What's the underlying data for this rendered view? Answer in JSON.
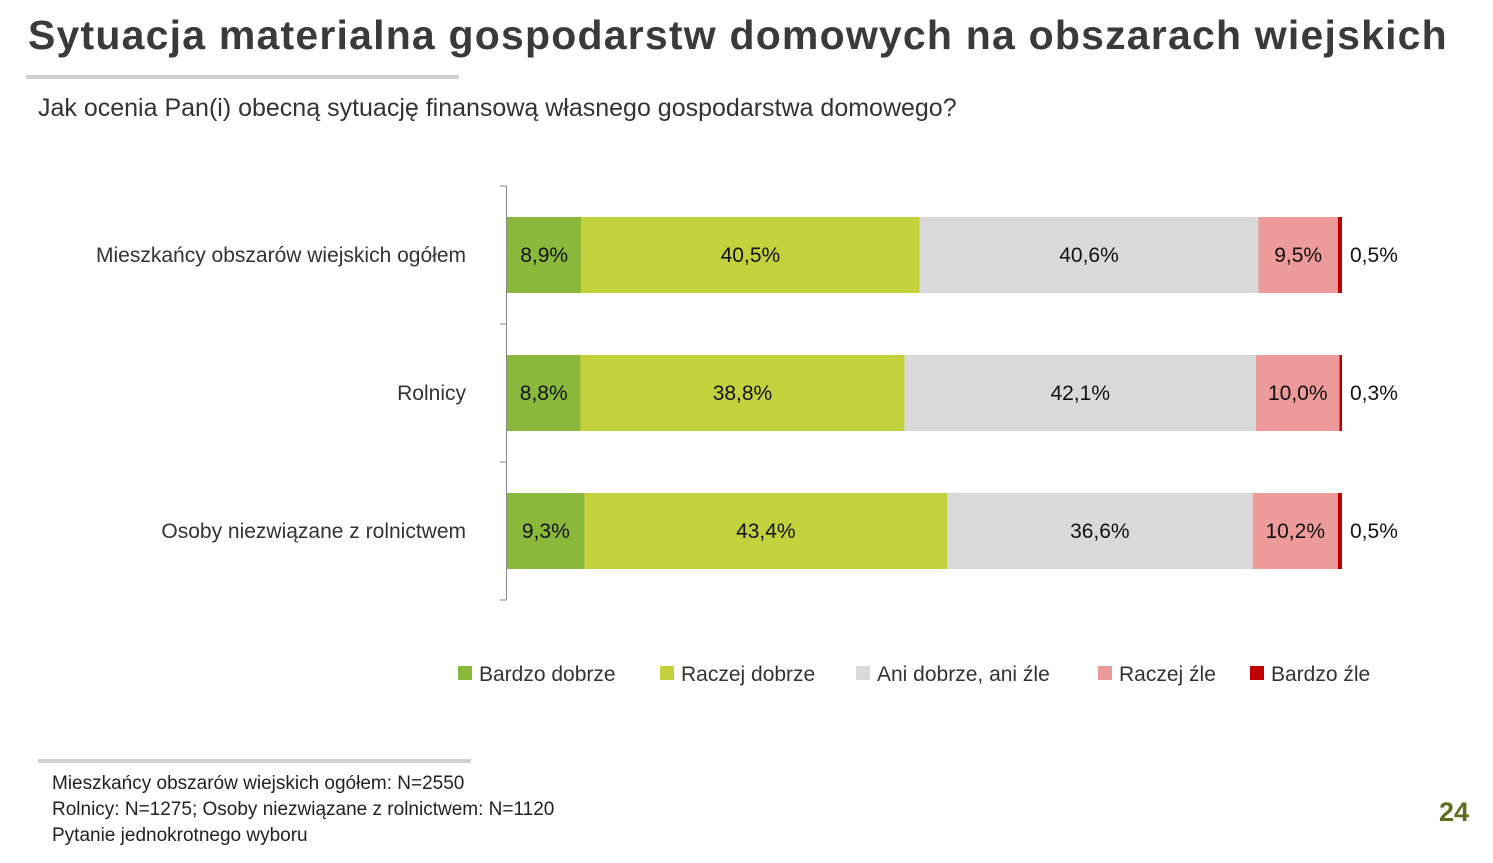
{
  "title": "Sytuacja materialna gospodarstw domowych na obszarach wiejskich",
  "subtitle": "Jak ocenia Pan(i) obecną sytuację finansową własnego gospodarstwa domowego?",
  "chart_data": {
    "type": "bar",
    "orientation": "horizontal",
    "stacked": true,
    "categories": [
      "Mieszkańcy obszarów wiejskich ogółem",
      "Rolnicy",
      "Osoby niezwiązane z rolnictwem"
    ],
    "series": [
      {
        "name": "Bardzo dobrze",
        "color": "#8ab83a",
        "values": [
          8.9,
          8.8,
          9.3
        ],
        "labels": [
          "8,9%",
          "8,8%",
          "9,3%"
        ]
      },
      {
        "name": "Raczej dobrze",
        "color": "#c3d13d",
        "values": [
          40.5,
          38.8,
          43.4
        ],
        "labels": [
          "40,5%",
          "38,8%",
          "43,4%"
        ]
      },
      {
        "name": "Ani dobrze, ani źle",
        "color": "#d9d9d9",
        "values": [
          40.6,
          42.1,
          36.6
        ],
        "labels": [
          "40,6%",
          "42,1%",
          "36,6%"
        ]
      },
      {
        "name": "Raczej źle",
        "color": "#ec9a9a",
        "values": [
          9.5,
          10.0,
          10.2
        ],
        "labels": [
          "9,5%",
          "10,0%",
          "10,2%"
        ]
      },
      {
        "name": "Bardzo źle",
        "color": "#c00000",
        "values": [
          0.5,
          0.3,
          0.5
        ],
        "labels": [
          "0,5%",
          "0,3%",
          "0,5%"
        ]
      }
    ],
    "xlim": [
      0,
      100
    ],
    "legend": "bottom",
    "grid": false
  },
  "footer": {
    "lines": [
      "Mieszkańcy obszarów wiejskich ogółem: N=2550",
      "Rolnicy: N=1275; Osoby niezwiązane z rolnictwem: N=1120",
      "Pytanie jednokrotnego wyboru"
    ],
    "page_number": "24"
  }
}
